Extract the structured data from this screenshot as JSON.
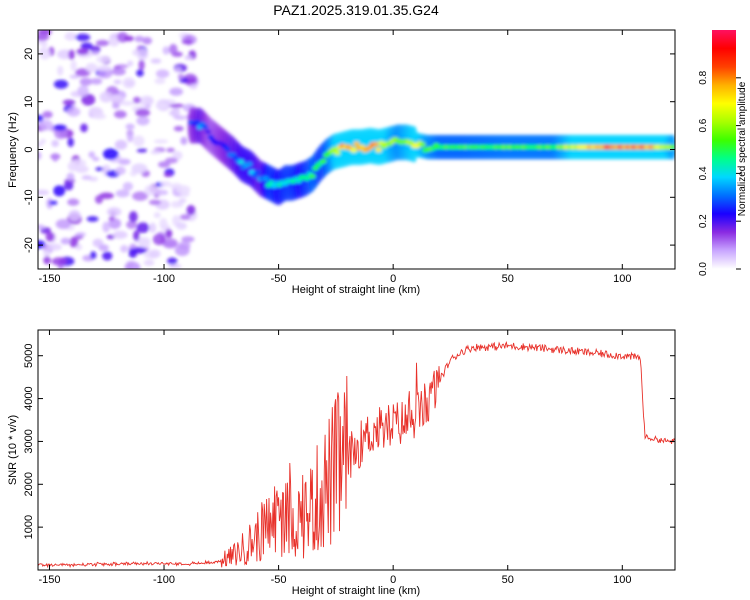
{
  "title": "PAZ1.2025.319.01.35.G24",
  "chart_data": [
    {
      "id": "spectrogram",
      "type": "heatmap",
      "xlabel": "Height of straight line (km)",
      "ylabel": "Frequency (Hz)",
      "xlim": [
        -155,
        123
      ],
      "ylim": [
        -25,
        25
      ],
      "xticks": [
        -150,
        -100,
        -50,
        0,
        50,
        100
      ],
      "xtick_labels": [
        "-150",
        "-100",
        "-50",
        "0",
        "50",
        "100"
      ],
      "yticks": [
        20,
        10,
        0,
        -10,
        -20
      ],
      "ytick_labels": [
        "20",
        "10",
        "0",
        "-10",
        "-20"
      ],
      "ridge": {
        "x": [
          -88,
          -84,
          -80,
          -75,
          -70,
          -66,
          -62,
          -58,
          -54,
          -50,
          -47,
          -44,
          -41,
          -38,
          -35,
          -32,
          -29,
          -26,
          -22,
          -18,
          -14,
          -10,
          -6,
          -2,
          2,
          6,
          10,
          15,
          20,
          30,
          50,
          70,
          90,
          110,
          123
        ],
        "freq": [
          5,
          5,
          3,
          1,
          -1,
          -3,
          -4,
          -6,
          -7,
          -8,
          -7,
          -7,
          -6.5,
          -6,
          -5,
          -3,
          -1.5,
          -0.5,
          0,
          0.5,
          0.5,
          0.8,
          0.5,
          1,
          1.5,
          1.5,
          1,
          0.5,
          0.5,
          0.5,
          0.5,
          0.5,
          0.5,
          0.5,
          0.5
        ],
        "amplitude": [
          0.25,
          0.3,
          0.2,
          0.25,
          0.3,
          0.35,
          0.35,
          0.3,
          0.45,
          0.4,
          0.45,
          0.45,
          0.4,
          0.45,
          0.5,
          0.45,
          0.5,
          0.6,
          0.8,
          0.7,
          0.75,
          0.8,
          0.7,
          0.6,
          0.55,
          0.6,
          0.65,
          0.55,
          0.5,
          0.5,
          0.52,
          0.52,
          0.8,
          0.8,
          0.55
        ]
      },
      "colorbar": {
        "label": "Normalized spectral amplitude",
        "range": [
          0,
          1
        ],
        "ticks": [
          0.0,
          0.2,
          0.4,
          0.6,
          0.8
        ],
        "tick_labels": [
          "0.0",
          "0.2",
          "0.4",
          "0.6",
          "0.8"
        ],
        "colors": [
          "#ffffff",
          "#c9a6ff",
          "#8a2be2",
          "#1a00ff",
          "#0070ff",
          "#00d8ff",
          "#00ff8a",
          "#3cff00",
          "#a8ff00",
          "#ffff00",
          "#ffb000",
          "#ff4000",
          "#ff0000",
          "#ff1060"
        ]
      }
    },
    {
      "id": "snr",
      "type": "line",
      "xlabel": "Height of straight line (km)",
      "ylabel": "SNR (10 * v/v)",
      "xlim": [
        -155,
        123
      ],
      "ylim": [
        0,
        5600
      ],
      "xticks": [
        -150,
        -100,
        -50,
        0,
        50,
        100
      ],
      "xtick_labels": [
        "-150",
        "-100",
        "-50",
        "0",
        "50",
        "100"
      ],
      "yticks": [
        1000,
        2000,
        3000,
        4000,
        5000
      ],
      "ytick_labels": [
        "1000",
        "2000",
        "3000",
        "4000",
        "5000"
      ],
      "color": "#e8312a",
      "series": [
        {
          "name": "SNR",
          "x": [
            -155,
            -140,
            -120,
            -100,
            -90,
            -80,
            -75,
            -70,
            -65,
            -60,
            -55,
            -50,
            -45,
            -40,
            -35,
            -30,
            -25,
            -20,
            -15,
            -10,
            -5,
            0,
            5,
            10,
            15,
            20,
            25,
            30,
            35,
            40,
            50,
            60,
            70,
            80,
            90,
            100,
            108,
            109,
            110,
            115,
            120,
            123
          ],
          "y": [
            120,
            120,
            140,
            150,
            150,
            170,
            220,
            330,
            520,
            750,
            1000,
            1300,
            1150,
            1200,
            1500,
            1900,
            2300,
            2600,
            2900,
            3200,
            3300,
            3400,
            3450,
            3600,
            3900,
            4400,
            4900,
            5100,
            5200,
            5200,
            5230,
            5200,
            5150,
            5100,
            5050,
            5000,
            4950,
            3800,
            3100,
            3050,
            3000,
            3000
          ]
        }
      ]
    }
  ]
}
